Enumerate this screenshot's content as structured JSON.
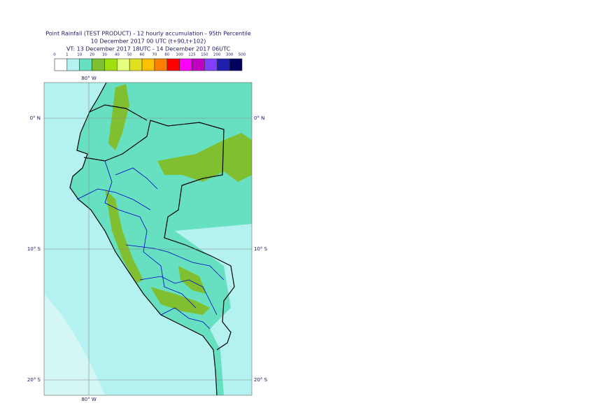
{
  "header": {
    "title_lines": [
      "Point Rainfall (TEST PRODUCT) - 12 hourly accumulation - 95th Percentile",
      "10 December 2017 00 UTC (t+90,t+102)",
      "VT: 13 December 2017 18UTC - 14 December 2017 06UTC"
    ]
  },
  "legend": {
    "thresholds": [
      0,
      1,
      10,
      20,
      30,
      40,
      50,
      60,
      70,
      80,
      100,
      125,
      150,
      200,
      300,
      500
    ],
    "colors": [
      "#ffffff",
      "#b3f2f0",
      "#66e0c0",
      "#80c030",
      "#a0e010",
      "#e6ff80",
      "#e0e020",
      "#ffc000",
      "#ff8000",
      "#ff0000",
      "#ff00ff",
      "#c000c0",
      "#8040ff",
      "#2020b0",
      "#000060"
    ]
  },
  "map": {
    "lon_label_top": "80° W",
    "lon_label_bottom": "80° W",
    "lat_labels": [
      "0° N",
      "10° S",
      "20° S"
    ]
  }
}
